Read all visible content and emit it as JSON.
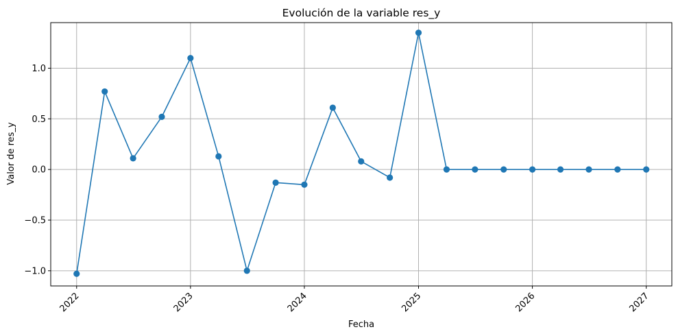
{
  "chart_data": {
    "type": "line",
    "title": "Evolución de la variable res_y",
    "xlabel": "Fecha",
    "ylabel": "Valor de res_y",
    "x": [
      "2022-01-01",
      "2022-04-01",
      "2022-07-01",
      "2022-10-01",
      "2023-01-01",
      "2023-04-01",
      "2023-07-01",
      "2023-10-01",
      "2024-01-01",
      "2024-04-01",
      "2024-07-01",
      "2024-10-01",
      "2025-01-01",
      "2025-04-01",
      "2025-07-01",
      "2025-10-01",
      "2026-01-01",
      "2026-04-01",
      "2026-07-01",
      "2026-10-01",
      "2027-01-01"
    ],
    "series": [
      {
        "values": [
          -1.03,
          0.77,
          0.11,
          0.52,
          1.1,
          0.13,
          -1.0,
          -0.13,
          -0.15,
          0.61,
          0.08,
          -0.08,
          1.35,
          0.0,
          0.0,
          0.0,
          0.0,
          0.0,
          0.0,
          0.0,
          0.0
        ],
        "color": "#1f77b4",
        "marker": "circle"
      }
    ],
    "xticks": [
      "2022",
      "2023",
      "2024",
      "2025",
      "2026",
      "2027"
    ],
    "yticks": [
      "−1.0",
      "−0.5",
      "0.0",
      "0.5",
      "1.0"
    ],
    "ylim": [
      -1.15,
      1.45
    ],
    "xlim": [
      "2021-10-10",
      "2027-03-24"
    ],
    "grid": true,
    "x_tick_rotation": 45
  }
}
